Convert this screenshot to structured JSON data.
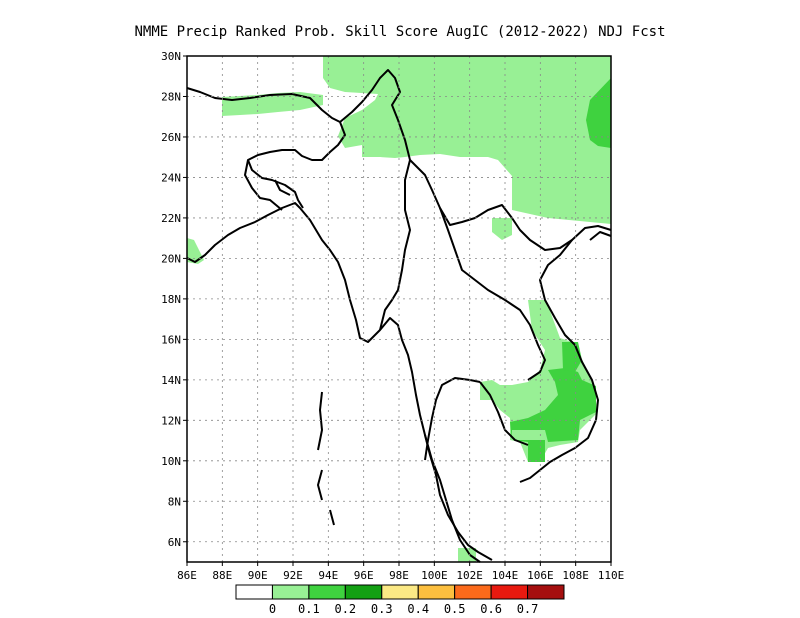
{
  "title": "NMME Precip Ranked Prob. Skill Score AugIC (2012-2022) NDJ Fcst",
  "map": {
    "lon_range": [
      86,
      110
    ],
    "lat_range": [
      5,
      30
    ],
    "lon_ticks": [
      "86E",
      "88E",
      "90E",
      "92E",
      "94E",
      "96E",
      "98E",
      "100E",
      "102E",
      "104E",
      "106E",
      "108E",
      "110E"
    ],
    "lat_ticks": [
      "6N",
      "8N",
      "10N",
      "12N",
      "14N",
      "16N",
      "18N",
      "20N",
      "22N",
      "24N",
      "26N",
      "28N",
      "30N"
    ],
    "grid": true
  },
  "colorbar": {
    "labels": [
      "0",
      "0.1",
      "0.2",
      "0.3",
      "0.4",
      "0.5",
      "0.6",
      "0.7"
    ],
    "colors": [
      "#ffffff",
      "#98f095",
      "#3fd23f",
      "#13a013",
      "#fbe985",
      "#fcbf3f",
      "#fb6a1b",
      "#e8190f",
      "#a50f0f"
    ]
  },
  "skill_regions": [
    {
      "level": 1,
      "color": "#98f095",
      "description": "Southern China / Tibet / Yunnan band"
    },
    {
      "level": 1,
      "color": "#98f095",
      "description": "Northern Myanmar / Northeast India"
    },
    {
      "level": 1,
      "color": "#98f095",
      "description": "Western edge near 86E 20N"
    },
    {
      "level": 1,
      "color": "#98f095",
      "description": "Cambodia / southern Laos / southern Vietnam"
    },
    {
      "level": 2,
      "color": "#3fd23f",
      "description": "Sichuan eastern edge"
    },
    {
      "level": 2,
      "color": "#3fd23f",
      "description": "Cambodia and southern Vietnam core"
    }
  ]
}
